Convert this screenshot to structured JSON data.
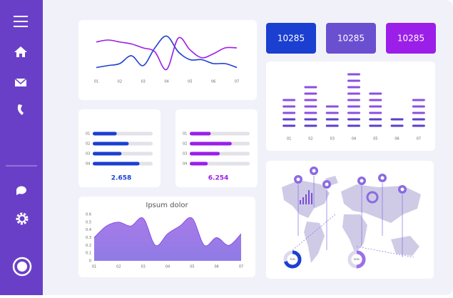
{
  "kpis": [
    "10285",
    "10285",
    "10285"
  ],
  "line_chart": {
    "type": "line",
    "x": [
      1,
      1.5,
      2,
      2.5,
      3,
      3.5,
      4,
      4.5,
      5,
      5.5,
      6,
      6.5,
      7
    ],
    "xlim": [
      1,
      7
    ],
    "ylim": [
      0,
      10
    ],
    "xticks": [
      {
        "value": 1,
        "label": "01"
      },
      {
        "value": 2,
        "label": "02"
      },
      {
        "value": 3,
        "label": "03"
      },
      {
        "value": 4,
        "label": "04"
      },
      {
        "value": 5,
        "label": "05"
      },
      {
        "value": 6,
        "label": "06"
      },
      {
        "value": 7,
        "label": "07"
      }
    ],
    "series": [
      {
        "color": "#1b3fd0",
        "values": [
          1,
          1.5,
          2,
          4,
          1.5,
          6,
          9,
          5,
          3,
          3,
          2,
          2,
          1
        ]
      },
      {
        "color": "#9b1fe8",
        "values": [
          7.5,
          8,
          7.5,
          7,
          6,
          5,
          0.5,
          8.5,
          5.5,
          3.5,
          4.5,
          6,
          6
        ]
      }
    ]
  },
  "bar_chart": {
    "type": "bar",
    "categories": [
      "01",
      "02",
      "03",
      "04",
      "05",
      "06",
      "07"
    ],
    "values": [
      5,
      7,
      4,
      9,
      6,
      2,
      5
    ],
    "color": "#8b4fe0"
  },
  "progress_panels": [
    {
      "type": "bar",
      "categories": [
        "01",
        "02",
        "03",
        "04"
      ],
      "values": [
        0.4,
        0.6,
        0.48,
        0.78
      ],
      "xlim": [
        0,
        1
      ],
      "color": "#1b3fd0",
      "total": "2.658"
    },
    {
      "type": "bar",
      "categories": [
        "01",
        "02",
        "03",
        "04"
      ],
      "values": [
        0.35,
        0.7,
        0.5,
        0.3
      ],
      "xlim": [
        0,
        1
      ],
      "color": "#9b1fe8",
      "total": "6.254"
    }
  ],
  "area_chart": {
    "type": "area",
    "title": "Ipsum dolor",
    "x": [
      1,
      1.5,
      2,
      2.5,
      3,
      3.5,
      4,
      4.5,
      5,
      5.5,
      6,
      6.5,
      7
    ],
    "values": [
      0.3,
      0.45,
      0.5,
      0.45,
      0.55,
      0.2,
      0.35,
      0.45,
      0.55,
      0.2,
      0.3,
      0.2,
      0.35
    ],
    "color": "#a77be8",
    "xlim": [
      1,
      7
    ],
    "ylim": [
      0,
      0.6
    ],
    "yticks": [
      0,
      0.1,
      0.2,
      0.3,
      0.4,
      0.5,
      0.6
    ],
    "xticks": [
      {
        "value": 1,
        "label": "01"
      },
      {
        "value": 2,
        "label": "02"
      },
      {
        "value": 3,
        "label": "03"
      },
      {
        "value": 4,
        "label": "04"
      },
      {
        "value": 5,
        "label": "05"
      },
      {
        "value": 6,
        "label": "06"
      },
      {
        "value": 7,
        "label": "07"
      }
    ]
  },
  "map_donuts": [
    {
      "value": 70,
      "label": "70%",
      "color": "#1b3fd0"
    },
    {
      "value": 50,
      "label": "50%",
      "color": "#9b6fe8"
    }
  ]
}
